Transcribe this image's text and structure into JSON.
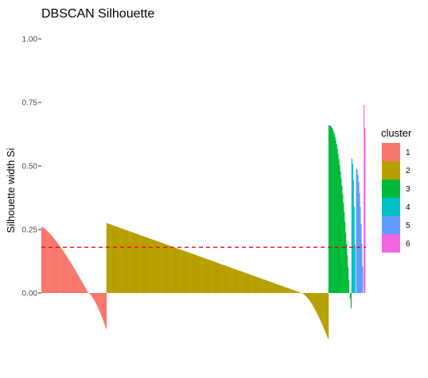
{
  "chart_data": {
    "type": "bar",
    "title": "DBSCAN Silhouette",
    "xlabel": "",
    "ylabel": "Silhouette width Si",
    "ylim": [
      -0.175,
      1.0
    ],
    "y_ticks": [
      "0.00",
      "0.25",
      "0.50",
      "0.75",
      "1.00"
    ],
    "average_silhouette_width": 0.18,
    "average_line": {
      "color": "#F8000D",
      "style": "dashed"
    },
    "legend": {
      "title": "cluster",
      "position": "right"
    },
    "series": [
      {
        "name": "1",
        "color": "#F8766D",
        "count": 85,
        "first_value": 0.26,
        "zero_crossing_fraction": 0.72,
        "last_value": -0.14,
        "curve_exponent": 1.3
      },
      {
        "name": "2",
        "color": "#B79F00",
        "count": 290,
        "first_value": 0.275,
        "zero_crossing_fraction": 0.88,
        "last_value": -0.18,
        "curve_exponent": 1.0
      },
      {
        "name": "3",
        "color": "#00BA38",
        "count": 30,
        "first_value": 0.66,
        "zero_crossing_fraction": 0.93,
        "last_value": -0.06,
        "curve_exponent": 2.2
      },
      {
        "name": "4",
        "color": "#00BFC4",
        "count": 6,
        "first_value": 0.53,
        "zero_crossing_fraction": 1.0,
        "last_value": 0.0,
        "curve_exponent": 2.0
      },
      {
        "name": "5",
        "color": "#619CFF",
        "count": 10,
        "first_value": 0.49,
        "zero_crossing_fraction": 1.0,
        "last_value": 0.0,
        "curve_exponent": 2.0
      },
      {
        "name": "6",
        "color": "#F564E3",
        "count": 3,
        "first_value": 0.74,
        "zero_crossing_fraction": 1.0,
        "last_value": 0.0,
        "curve_exponent": 3.0
      }
    ]
  }
}
